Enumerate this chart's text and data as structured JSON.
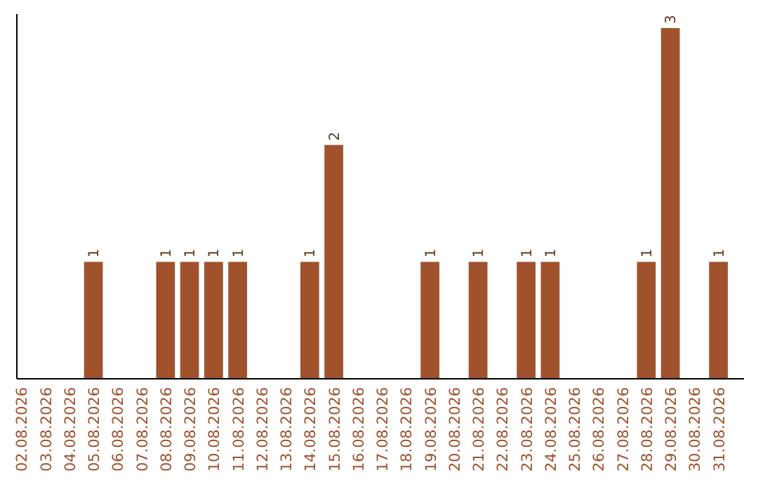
{
  "chart_data": {
    "type": "bar",
    "categories": [
      "02.08.2026",
      "03.08.2026",
      "04.08.2026",
      "05.08.2026",
      "06.08.2026",
      "07.08.2026",
      "08.08.2026",
      "09.08.2026",
      "10.08.2026",
      "11.08.2026",
      "12.08.2026",
      "13.08.2026",
      "14.08.2026",
      "15.08.2026",
      "16.08.2026",
      "17.08.2026",
      "18.08.2026",
      "19.08.2026",
      "20.08.2026",
      "21.08.2026",
      "22.08.2026",
      "23.08.2026",
      "24.08.2026",
      "25.08.2026",
      "26.08.2026",
      "27.08.2026",
      "28.08.2026",
      "29.08.2026",
      "30.08.2026",
      "31.08.2026"
    ],
    "values": [
      0,
      0,
      0,
      1,
      0,
      0,
      1,
      1,
      1,
      1,
      0,
      0,
      1,
      2,
      0,
      0,
      0,
      1,
      0,
      1,
      0,
      1,
      1,
      0,
      0,
      0,
      1,
      3,
      0,
      1
    ],
    "value_labels": [
      null,
      null,
      null,
      "1",
      null,
      null,
      "1",
      "1",
      "1",
      "1",
      null,
      null,
      "1",
      "2",
      null,
      null,
      null,
      "1",
      null,
      "1",
      null,
      "1",
      "1",
      null,
      null,
      null,
      "1",
      "3",
      null,
      "1"
    ],
    "color": "#a0522d",
    "tick_labels": "x"
  }
}
